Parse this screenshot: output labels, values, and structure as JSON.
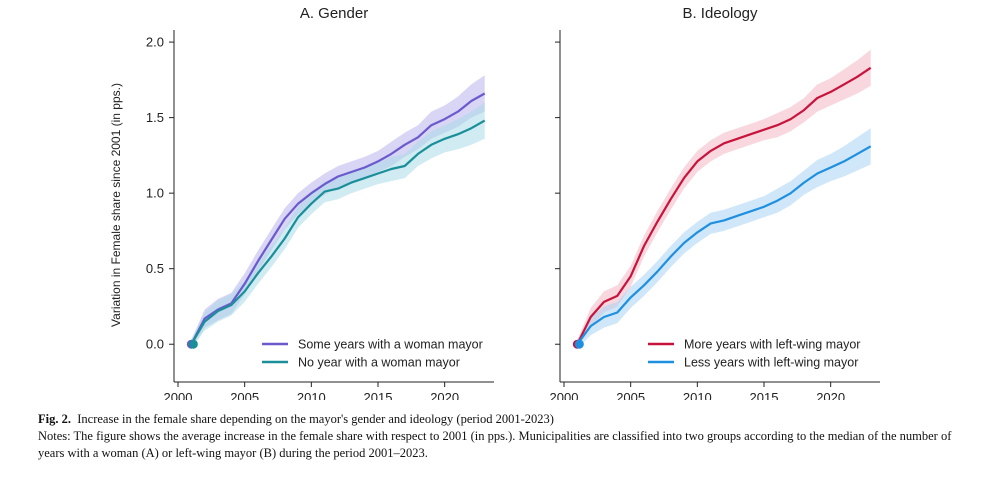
{
  "figure": {
    "y_axis_label": "Variation in Female share since 2001 (in pps.)"
  },
  "caption": {
    "label": "Fig. 2.",
    "title": "Increase in the female share depending on the mayor's gender and ideology (period 2001-2023)",
    "notes": "Notes: The figure shows the average increase in the female share with respect to 2001 (in pps.). Municipalities are classified into two groups according to the median of the number of years with a woman (A) or left-wing mayor (B) during the period 2001–2023."
  },
  "chart_data": [
    {
      "type": "line",
      "title": "A. Gender",
      "xlabel": "",
      "ylabel": "Variation in Female share since 2001 (in pps.)",
      "xlim": [
        1999.7,
        2023.7
      ],
      "ylim": [
        -0.25,
        2.08
      ],
      "xticks": [
        2000,
        2005,
        2010,
        2015,
        2020
      ],
      "yticks": [
        "0.0",
        "0.5",
        "1.0",
        "1.5",
        "2.0"
      ],
      "legend_position": "lower-right",
      "x": [
        2001,
        2002,
        2003,
        2004,
        2005,
        2006,
        2007,
        2008,
        2009,
        2010,
        2011,
        2012,
        2013,
        2014,
        2015,
        2016,
        2017,
        2018,
        2019,
        2020,
        2021,
        2022,
        2023
      ],
      "series": [
        {
          "name": "Some years with a woman mayor",
          "color": "#6a5acd",
          "band_color": "#b9b2ec",
          "values": [
            0.0,
            0.17,
            0.23,
            0.27,
            0.4,
            0.55,
            0.69,
            0.83,
            0.93,
            1.0,
            1.06,
            1.11,
            1.14,
            1.17,
            1.21,
            1.26,
            1.32,
            1.37,
            1.45,
            1.49,
            1.54,
            1.61,
            1.66
          ],
          "ci": [
            0.03,
            0.06,
            0.07,
            0.07,
            0.07,
            0.07,
            0.07,
            0.07,
            0.07,
            0.07,
            0.07,
            0.07,
            0.07,
            0.07,
            0.07,
            0.08,
            0.08,
            0.08,
            0.09,
            0.09,
            0.1,
            0.11,
            0.12
          ]
        },
        {
          "name": "No year with a woman mayor",
          "color": "#1a8f99",
          "band_color": "#a9dbe6",
          "values": [
            0.0,
            0.15,
            0.22,
            0.26,
            0.35,
            0.47,
            0.58,
            0.7,
            0.84,
            0.93,
            1.01,
            1.03,
            1.07,
            1.1,
            1.13,
            1.16,
            1.18,
            1.26,
            1.32,
            1.36,
            1.39,
            1.43,
            1.48
          ],
          "ci": [
            0.03,
            0.06,
            0.07,
            0.07,
            0.07,
            0.07,
            0.07,
            0.07,
            0.07,
            0.07,
            0.07,
            0.07,
            0.07,
            0.07,
            0.07,
            0.08,
            0.08,
            0.08,
            0.09,
            0.09,
            0.1,
            0.11,
            0.12
          ]
        }
      ]
    },
    {
      "type": "line",
      "title": "B. Ideology",
      "xlabel": "",
      "ylabel": "",
      "xlim": [
        1999.7,
        2023.7
      ],
      "ylim": [
        -0.25,
        2.08
      ],
      "xticks": [
        2000,
        2005,
        2010,
        2015,
        2020
      ],
      "yticks": [
        "",
        "",
        "",
        "",
        ""
      ],
      "legend_position": "lower-right",
      "x": [
        2001,
        2002,
        2003,
        2004,
        2005,
        2006,
        2007,
        2008,
        2009,
        2010,
        2011,
        2012,
        2013,
        2014,
        2015,
        2016,
        2017,
        2018,
        2019,
        2020,
        2021,
        2022,
        2023
      ],
      "series": [
        {
          "name": "More years with left-wing mayor",
          "color": "#c8143c",
          "band_color": "#f4b6c2",
          "values": [
            0.0,
            0.18,
            0.28,
            0.32,
            0.45,
            0.65,
            0.81,
            0.96,
            1.1,
            1.21,
            1.28,
            1.33,
            1.36,
            1.39,
            1.42,
            1.45,
            1.49,
            1.55,
            1.63,
            1.67,
            1.72,
            1.77,
            1.83
          ],
          "ci": [
            0.03,
            0.06,
            0.07,
            0.07,
            0.07,
            0.07,
            0.07,
            0.07,
            0.07,
            0.07,
            0.07,
            0.07,
            0.07,
            0.07,
            0.07,
            0.08,
            0.08,
            0.08,
            0.09,
            0.09,
            0.1,
            0.11,
            0.12
          ]
        },
        {
          "name": "Less years with left-wing mayor",
          "color": "#1f8fe0",
          "band_color": "#a8d4f4",
          "values": [
            0.0,
            0.12,
            0.18,
            0.21,
            0.31,
            0.39,
            0.48,
            0.58,
            0.67,
            0.74,
            0.8,
            0.82,
            0.85,
            0.88,
            0.91,
            0.95,
            1.0,
            1.07,
            1.13,
            1.17,
            1.21,
            1.26,
            1.31
          ],
          "ci": [
            0.03,
            0.06,
            0.07,
            0.07,
            0.07,
            0.07,
            0.07,
            0.07,
            0.07,
            0.07,
            0.07,
            0.07,
            0.07,
            0.07,
            0.07,
            0.08,
            0.08,
            0.08,
            0.09,
            0.09,
            0.1,
            0.11,
            0.12
          ]
        }
      ]
    }
  ]
}
